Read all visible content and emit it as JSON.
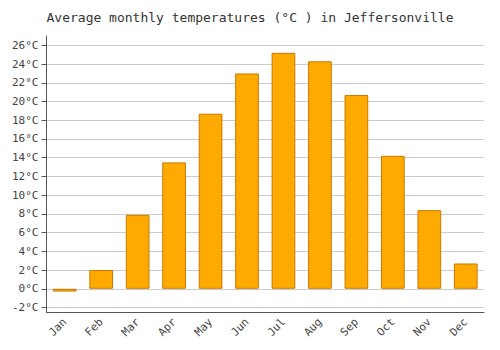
{
  "chart_data": {
    "type": "bar",
    "title": "Average monthly temperatures (°C ) in Jeffersonville",
    "categories": [
      "Jan",
      "Feb",
      "Mar",
      "Apr",
      "May",
      "Jun",
      "Jul",
      "Aug",
      "Sep",
      "Oct",
      "Nov",
      "Dec"
    ],
    "values": [
      -0.3,
      2.0,
      7.9,
      13.5,
      18.7,
      23.0,
      25.2,
      24.3,
      20.7,
      14.2,
      8.4,
      2.7
    ],
    "color": "#FFAA00",
    "ylim": [
      -2.5,
      27
    ],
    "yticks": [
      {
        "value": -2,
        "label": "-2°C"
      },
      {
        "value": 0,
        "label": "0°C"
      },
      {
        "value": 2,
        "label": "2°C"
      },
      {
        "value": 4,
        "label": "4°C"
      },
      {
        "value": 6,
        "label": "6°C"
      },
      {
        "value": 8,
        "label": "8°C"
      },
      {
        "value": 10,
        "label": "10°C"
      },
      {
        "value": 12,
        "label": "12°C"
      },
      {
        "value": 14,
        "label": "14°C"
      },
      {
        "value": 16,
        "label": "16°C"
      },
      {
        "value": 18,
        "label": "18°C"
      },
      {
        "value": 20,
        "label": "20°C"
      },
      {
        "value": 22,
        "label": "22°C"
      },
      {
        "value": 24,
        "label": "24°C"
      },
      {
        "value": 26,
        "label": "26°C"
      }
    ],
    "grid": true
  }
}
